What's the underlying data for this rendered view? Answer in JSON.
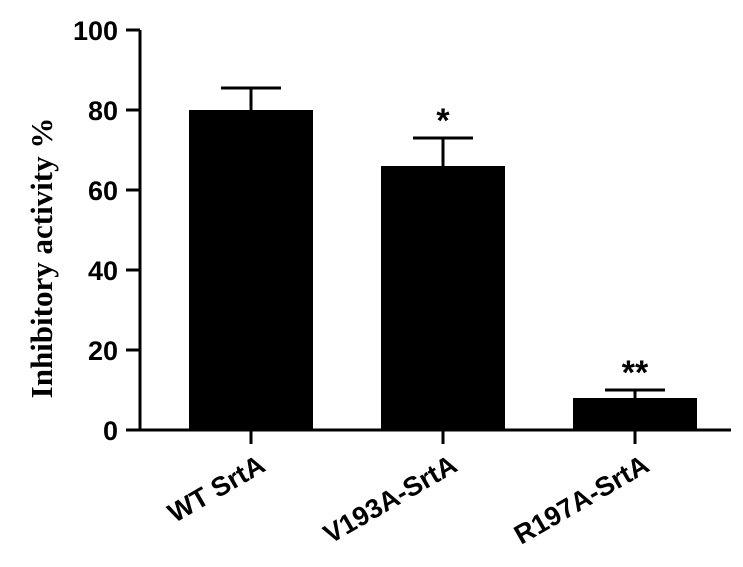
{
  "chart_data": {
    "type": "bar",
    "title": "",
    "xlabel": "",
    "ylabel": "Inhibitory activity %",
    "ylim": [
      0,
      100
    ],
    "yticks": [
      0,
      20,
      40,
      60,
      80,
      100
    ],
    "grid": false,
    "categories": [
      "WT SrtA",
      "V193A-SrtA",
      "R197A-SrtA"
    ],
    "values": [
      80,
      66,
      8
    ],
    "error_upper": [
      5.5,
      7,
      2
    ],
    "annotations": [
      "",
      "*",
      "**"
    ],
    "bar_color": "#000000"
  }
}
